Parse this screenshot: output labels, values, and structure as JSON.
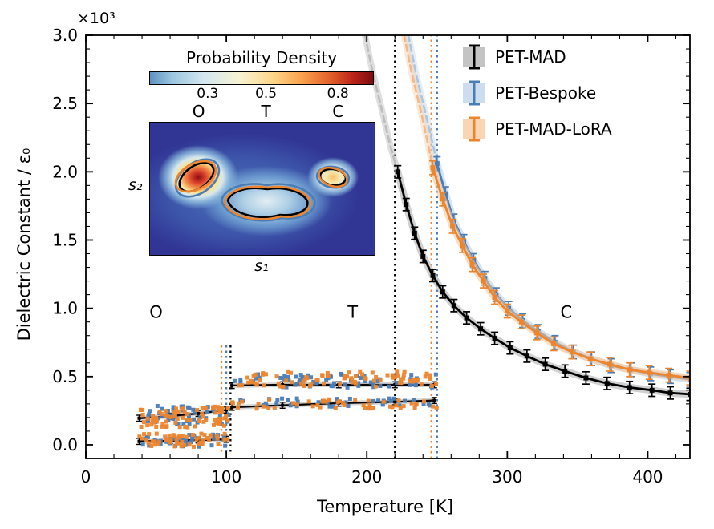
{
  "chart_data": {
    "type": "line",
    "title": "",
    "xlabel": "Temperature [K]",
    "ylabel": "Dielectric Constant / ε₀",
    "y_scale_label": "×10³",
    "xlim": [
      0,
      430
    ],
    "ylim": [
      -0.1,
      3.0
    ],
    "xticks": [
      0,
      100,
      200,
      300,
      400
    ],
    "yticks": [
      0.0,
      0.5,
      1.0,
      1.5,
      2.0,
      2.5,
      3.0
    ],
    "grid": false,
    "legend_position": "upper right",
    "phase_labels": [
      {
        "text": "O",
        "x": 50,
        "y": 0.93
      },
      {
        "text": "T",
        "x": 190,
        "y": 0.93
      },
      {
        "text": "C",
        "x": 342,
        "y": 0.93
      }
    ],
    "series": [
      {
        "name": "PET-MAD",
        "color": "#000000",
        "band_color": "#b0b0b0",
        "dash_color": "#bdbdbd",
        "tc_vline": 220,
        "low_vline": 103,
        "yerr": 0.045,
        "curve_high": [
          [
            222,
            2.0
          ],
          [
            228,
            1.76
          ],
          [
            234,
            1.55
          ],
          [
            240,
            1.38
          ],
          [
            247,
            1.24
          ],
          [
            254,
            1.12
          ],
          [
            262,
            1.02
          ],
          [
            271,
            0.93
          ],
          [
            281,
            0.85
          ],
          [
            291,
            0.78
          ],
          [
            302,
            0.71
          ],
          [
            314,
            0.65
          ],
          [
            327,
            0.59
          ],
          [
            341,
            0.54
          ],
          [
            356,
            0.49
          ],
          [
            371,
            0.45
          ],
          [
            387,
            0.42
          ],
          [
            403,
            0.4
          ],
          [
            416,
            0.38
          ],
          [
            430,
            0.37
          ]
        ],
        "curve_dashed": [
          [
            197,
            3.08
          ],
          [
            204,
            2.74
          ],
          [
            211,
            2.44
          ],
          [
            217,
            2.18
          ],
          [
            222,
            2.0
          ]
        ],
        "lines": [
          [
            [
              104,
              0.435
            ],
            [
              140,
              0.44
            ],
            [
              180,
              0.44
            ],
            [
              220,
              0.44
            ],
            [
              248,
              0.44
            ]
          ],
          [
            [
              104,
              0.275
            ],
            [
              140,
              0.29
            ],
            [
              180,
              0.305
            ],
            [
              220,
              0.315
            ],
            [
              248,
              0.325
            ]
          ],
          [
            [
              38,
              0.195
            ],
            [
              60,
              0.21
            ],
            [
              80,
              0.23
            ],
            [
              100,
              0.255
            ]
          ],
          [
            [
              38,
              0.025
            ],
            [
              60,
              0.03
            ],
            [
              80,
              0.035
            ],
            [
              100,
              0.04
            ]
          ]
        ],
        "clusters": []
      },
      {
        "name": "PET-Bespoke",
        "color": "#4a7db5",
        "band_color": "#b9d2e8",
        "dash_color": "#a9c6e4",
        "tc_vline": 250,
        "low_vline": 100,
        "yerr": 0.05,
        "curve_high": [
          [
            250,
            2.06
          ],
          [
            256,
            1.84
          ],
          [
            262,
            1.64
          ],
          [
            269,
            1.49
          ],
          [
            276,
            1.35
          ],
          [
            284,
            1.22
          ],
          [
            292,
            1.1
          ],
          [
            301,
            1.0
          ],
          [
            311,
            0.91
          ],
          [
            322,
            0.83
          ],
          [
            334,
            0.75
          ],
          [
            347,
            0.68
          ],
          [
            360,
            0.63
          ],
          [
            374,
            0.58
          ],
          [
            388,
            0.55
          ],
          [
            402,
            0.52
          ],
          [
            416,
            0.5
          ],
          [
            430,
            0.48
          ]
        ],
        "curve_dashed": [
          [
            228,
            3.08
          ],
          [
            235,
            2.72
          ],
          [
            242,
            2.42
          ],
          [
            247,
            2.2
          ],
          [
            250,
            2.06
          ]
        ],
        "lines": [],
        "clusters": [
          {
            "x0": 40,
            "x1": 102,
            "yc": 0.22,
            "spread": 0.14,
            "n": 55
          },
          {
            "x0": 40,
            "x1": 102,
            "yc": 0.03,
            "spread": 0.09,
            "n": 40
          },
          {
            "x0": 104,
            "x1": 250,
            "yc": 0.47,
            "spread": 0.1,
            "n": 65
          },
          {
            "x0": 104,
            "x1": 250,
            "yc": 0.31,
            "spread": 0.06,
            "n": 40
          }
        ]
      },
      {
        "name": "PET-MAD-LoRA",
        "color": "#ec852e",
        "band_color": "#f8c79a",
        "dash_color": "#f5b888",
        "tc_vline": 246,
        "low_vline": 96.5,
        "yerr": 0.05,
        "curve_high": [
          [
            247,
            2.03
          ],
          [
            254,
            1.8
          ],
          [
            261,
            1.6
          ],
          [
            268,
            1.46
          ],
          [
            275,
            1.32
          ],
          [
            283,
            1.2
          ],
          [
            291,
            1.08
          ],
          [
            300,
            0.98
          ],
          [
            310,
            0.9
          ],
          [
            321,
            0.82
          ],
          [
            333,
            0.74
          ],
          [
            346,
            0.68
          ],
          [
            359,
            0.63
          ],
          [
            373,
            0.59
          ],
          [
            387,
            0.55
          ],
          [
            401,
            0.53
          ],
          [
            415,
            0.51
          ],
          [
            430,
            0.49
          ]
        ],
        "curve_dashed": [
          [
            225,
            3.08
          ],
          [
            232,
            2.72
          ],
          [
            239,
            2.42
          ],
          [
            244,
            2.18
          ],
          [
            247,
            2.03
          ]
        ],
        "lines": [],
        "clusters": [
          {
            "x0": 38,
            "x1": 102,
            "yc": 0.2,
            "spread": 0.16,
            "n": 80
          },
          {
            "x0": 38,
            "x1": 102,
            "yc": 0.035,
            "spread": 0.1,
            "n": 55
          },
          {
            "x0": 104,
            "x1": 250,
            "yc": 0.48,
            "spread": 0.11,
            "n": 85
          },
          {
            "x0": 104,
            "x1": 250,
            "yc": 0.3,
            "spread": 0.07,
            "n": 50
          }
        ]
      }
    ],
    "inset": {
      "title": "Probability Density",
      "colorbar_ticks": [
        "0.3",
        "0.5",
        "0.8"
      ],
      "phase_letters": [
        "O",
        "T",
        "C"
      ],
      "xlabel": "s₁",
      "ylabel": "s₂"
    }
  }
}
